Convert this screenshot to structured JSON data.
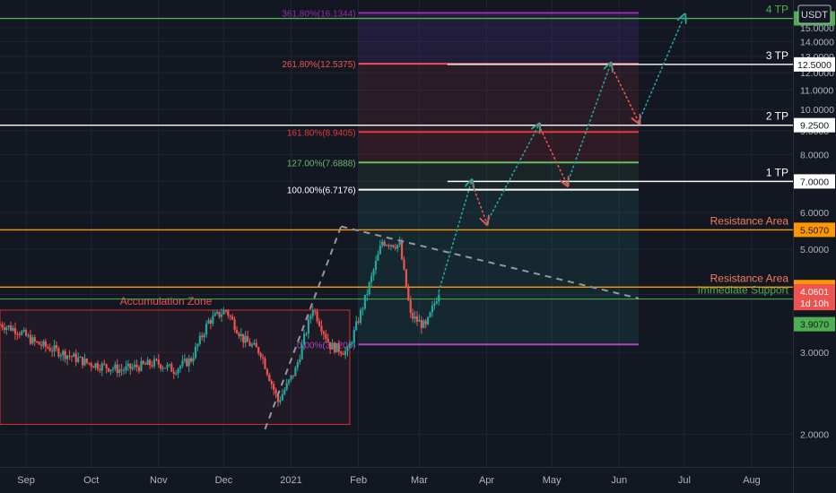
{
  "chart_data": {
    "type": "candlestick",
    "currency": "USDT",
    "y_scale": "log",
    "ylim": [
      1.7,
      17.2
    ],
    "y_ticks": [
      "2.0000",
      "3.0000",
      "4.0000",
      "5.0000",
      "6.0000",
      "7.0000",
      "8.0000",
      "9.0000",
      "10.0000",
      "11.0000",
      "12.0000",
      "13.0000",
      "14.0000",
      "15.0000"
    ],
    "x_ticks": [
      "Sep",
      "Oct",
      "Nov",
      "Dec",
      "2021",
      "Feb",
      "Mar",
      "Apr",
      "May",
      "Jun",
      "Jul",
      "Aug"
    ],
    "date_range": [
      "2020-08-20",
      "2021-08-20"
    ],
    "price_series": [
      {
        "date": "2020-08-20",
        "price": 3.45
      },
      {
        "date": "2020-08-28",
        "price": 3.35
      },
      {
        "date": "2020-09-05",
        "price": 3.15
      },
      {
        "date": "2020-09-13",
        "price": 3.05
      },
      {
        "date": "2020-09-21",
        "price": 2.95
      },
      {
        "date": "2020-09-29",
        "price": 2.85
      },
      {
        "date": "2020-10-07",
        "price": 2.8
      },
      {
        "date": "2020-10-15",
        "price": 2.75
      },
      {
        "date": "2020-10-23",
        "price": 2.8
      },
      {
        "date": "2020-10-31",
        "price": 2.85
      },
      {
        "date": "2020-11-08",
        "price": 2.75
      },
      {
        "date": "2020-11-16",
        "price": 2.9
      },
      {
        "date": "2020-11-24",
        "price": 3.5
      },
      {
        "date": "2020-12-02",
        "price": 3.7
      },
      {
        "date": "2020-12-10",
        "price": 3.2
      },
      {
        "date": "2020-12-18",
        "price": 3.0
      },
      {
        "date": "2020-12-26",
        "price": 2.35
      },
      {
        "date": "2021-01-03",
        "price": 2.75
      },
      {
        "date": "2021-01-11",
        "price": 3.75
      },
      {
        "date": "2021-01-19",
        "price": 3.1
      },
      {
        "date": "2021-01-27",
        "price": 3.0
      },
      {
        "date": "2021-02-04",
        "price": 3.9
      },
      {
        "date": "2021-02-12",
        "price": 5.2
      },
      {
        "date": "2021-02-20",
        "price": 5.1
      },
      {
        "date": "2021-02-25",
        "price": 3.6
      },
      {
        "date": "2021-03-04",
        "price": 3.4
      },
      {
        "date": "2021-03-10",
        "price": 4.06
      }
    ],
    "projection": [
      {
        "date": "2021-03-10",
        "price": 4.06
      },
      {
        "date": "2021-03-25",
        "price": 7.0
      },
      {
        "date": "2021-04-01",
        "price": 5.7
      },
      {
        "date": "2021-04-25",
        "price": 9.25
      },
      {
        "date": "2021-05-08",
        "price": 6.9
      },
      {
        "date": "2021-05-28",
        "price": 12.5
      },
      {
        "date": "2021-06-10",
        "price": 9.4
      },
      {
        "date": "2021-07-01",
        "price": 15.9
      }
    ],
    "trendlines": [
      {
        "style": "dashed",
        "from": {
          "date": "2020-12-20",
          "price": 2.05
        },
        "to": {
          "date": "2021-01-24",
          "price": 5.6
        }
      },
      {
        "style": "dashed",
        "from": {
          "date": "2021-01-24",
          "price": 5.6
        },
        "to": {
          "date": "2021-06-10",
          "price": 3.92
        }
      }
    ],
    "fib_levels": [
      {
        "label": "361.80%(16.1344)",
        "price": 16.1344,
        "color": "#9c27b0"
      },
      {
        "label": "261.80%(12.5375)",
        "price": 12.5375,
        "color": "#ef5350"
      },
      {
        "label": "161.80%(8.9405)",
        "price": 8.9405,
        "color": "#e53935"
      },
      {
        "label": "127.00%(7.6888)",
        "price": 7.6888,
        "color": "#66bb6a"
      },
      {
        "label": "100.00%(6.7176)",
        "price": 6.7176,
        "color": "#ffffff"
      },
      {
        "label": "0.00%(3.1206)",
        "price": 3.1206,
        "color": "#ab47bc"
      }
    ],
    "horizontal_levels": [
      {
        "label": "4 TP",
        "price": 15.7,
        "color": "#4caf50"
      },
      {
        "label": "3 TP",
        "price": 12.5,
        "color": "#ffffff"
      },
      {
        "label": "2 TP",
        "price": 9.25,
        "color": "#ffffff"
      },
      {
        "label": "1 TP",
        "price": 7.0,
        "color": "#ffffff"
      },
      {
        "label": "Resistance Area",
        "price": 5.507,
        "color": "#ff9800"
      },
      {
        "label": "Resistance Area",
        "price": 4.1466,
        "color": "#ff9800"
      },
      {
        "label": "Immediate Support",
        "price": 3.907,
        "color": "#4caf50"
      }
    ],
    "price_tags": [
      {
        "text": "12.5000",
        "price": 12.5
      },
      {
        "text": "9.2500",
        "price": 9.25
      },
      {
        "text": "7.0000",
        "price": 7.0
      },
      {
        "text": "5.5070",
        "price": 5.507
      },
      {
        "text": "4.1466",
        "price": 4.1466
      },
      {
        "text": "4.0601",
        "price": 4.0601
      },
      {
        "text": "1d 10h",
        "price": 3.83
      },
      {
        "text": "3.9070",
        "price": 3.45
      }
    ],
    "zones": [
      {
        "label": "Accumulation Zone",
        "from": "2020-08-20",
        "to": "2021-01-28",
        "top": 3.7,
        "bottom": 2.1
      }
    ]
  }
}
